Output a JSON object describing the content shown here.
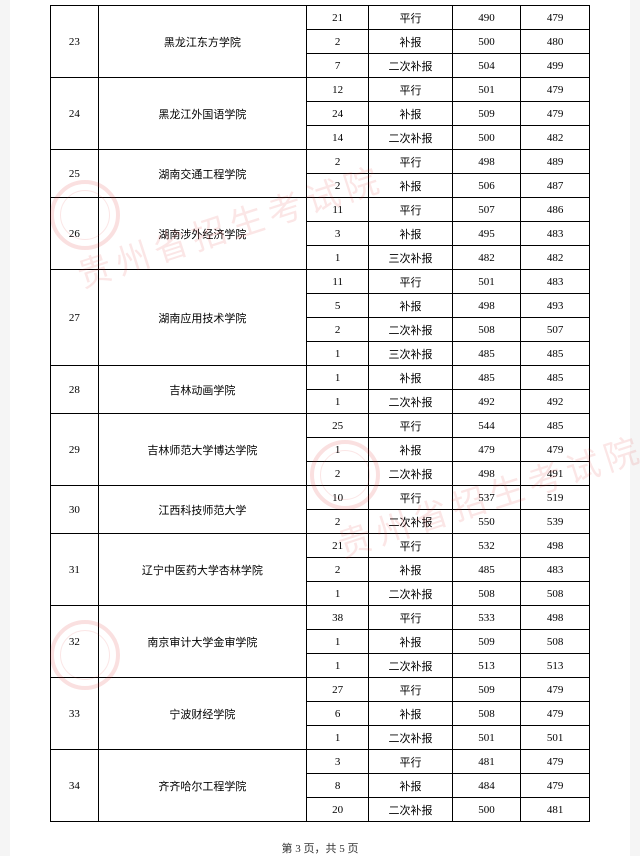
{
  "page": {
    "footer_prefix": "第",
    "footer_current": "3",
    "footer_mid": "页，共",
    "footer_total": "5",
    "footer_suffix": "页"
  },
  "watermark_text": "贵州省招生考试院",
  "table": {
    "groups": [
      {
        "idx": "23",
        "name": "黑龙江东方学院",
        "rows": [
          {
            "n": "21",
            "type": "平行",
            "a": "490",
            "b": "479"
          },
          {
            "n": "2",
            "type": "补报",
            "a": "500",
            "b": "480"
          },
          {
            "n": "7",
            "type": "二次补报",
            "a": "504",
            "b": "499"
          }
        ]
      },
      {
        "idx": "24",
        "name": "黑龙江外国语学院",
        "rows": [
          {
            "n": "12",
            "type": "平行",
            "a": "501",
            "b": "479"
          },
          {
            "n": "24",
            "type": "补报",
            "a": "509",
            "b": "479"
          },
          {
            "n": "14",
            "type": "二次补报",
            "a": "500",
            "b": "482"
          }
        ]
      },
      {
        "idx": "25",
        "name": "湖南交通工程学院",
        "rows": [
          {
            "n": "2",
            "type": "平行",
            "a": "498",
            "b": "489"
          },
          {
            "n": "2",
            "type": "补报",
            "a": "506",
            "b": "487"
          }
        ]
      },
      {
        "idx": "26",
        "name": "湖南涉外经济学院",
        "rows": [
          {
            "n": "11",
            "type": "平行",
            "a": "507",
            "b": "486"
          },
          {
            "n": "3",
            "type": "补报",
            "a": "495",
            "b": "483"
          },
          {
            "n": "1",
            "type": "三次补报",
            "a": "482",
            "b": "482"
          }
        ]
      },
      {
        "idx": "27",
        "name": "湖南应用技术学院",
        "rows": [
          {
            "n": "11",
            "type": "平行",
            "a": "501",
            "b": "483"
          },
          {
            "n": "5",
            "type": "补报",
            "a": "498",
            "b": "493"
          },
          {
            "n": "2",
            "type": "二次补报",
            "a": "508",
            "b": "507"
          },
          {
            "n": "1",
            "type": "三次补报",
            "a": "485",
            "b": "485"
          }
        ]
      },
      {
        "idx": "28",
        "name": "吉林动画学院",
        "rows": [
          {
            "n": "1",
            "type": "补报",
            "a": "485",
            "b": "485"
          },
          {
            "n": "1",
            "type": "二次补报",
            "a": "492",
            "b": "492"
          }
        ]
      },
      {
        "idx": "29",
        "name": "吉林师范大学博达学院",
        "rows": [
          {
            "n": "25",
            "type": "平行",
            "a": "544",
            "b": "485"
          },
          {
            "n": "1",
            "type": "补报",
            "a": "479",
            "b": "479"
          },
          {
            "n": "2",
            "type": "二次补报",
            "a": "498",
            "b": "491"
          }
        ]
      },
      {
        "idx": "30",
        "name": "江西科技师范大学",
        "rows": [
          {
            "n": "10",
            "type": "平行",
            "a": "537",
            "b": "519"
          },
          {
            "n": "2",
            "type": "二次补报",
            "a": "550",
            "b": "539"
          }
        ]
      },
      {
        "idx": "31",
        "name": "辽宁中医药大学杏林学院",
        "rows": [
          {
            "n": "21",
            "type": "平行",
            "a": "532",
            "b": "498"
          },
          {
            "n": "2",
            "type": "补报",
            "a": "485",
            "b": "483"
          },
          {
            "n": "1",
            "type": "二次补报",
            "a": "508",
            "b": "508"
          }
        ]
      },
      {
        "idx": "32",
        "name": "南京审计大学金审学院",
        "rows": [
          {
            "n": "38",
            "type": "平行",
            "a": "533",
            "b": "498"
          },
          {
            "n": "1",
            "type": "补报",
            "a": "509",
            "b": "508"
          },
          {
            "n": "1",
            "type": "二次补报",
            "a": "513",
            "b": "513"
          }
        ]
      },
      {
        "idx": "33",
        "name": "宁波财经学院",
        "rows": [
          {
            "n": "27",
            "type": "平行",
            "a": "509",
            "b": "479"
          },
          {
            "n": "6",
            "type": "补报",
            "a": "508",
            "b": "479"
          },
          {
            "n": "1",
            "type": "二次补报",
            "a": "501",
            "b": "501"
          }
        ]
      },
      {
        "idx": "34",
        "name": "齐齐哈尔工程学院",
        "rows": [
          {
            "n": "3",
            "type": "平行",
            "a": "481",
            "b": "479"
          },
          {
            "n": "8",
            "type": "补报",
            "a": "484",
            "b": "479"
          },
          {
            "n": "20",
            "type": "二次补报",
            "a": "500",
            "b": "481"
          }
        ]
      }
    ]
  }
}
